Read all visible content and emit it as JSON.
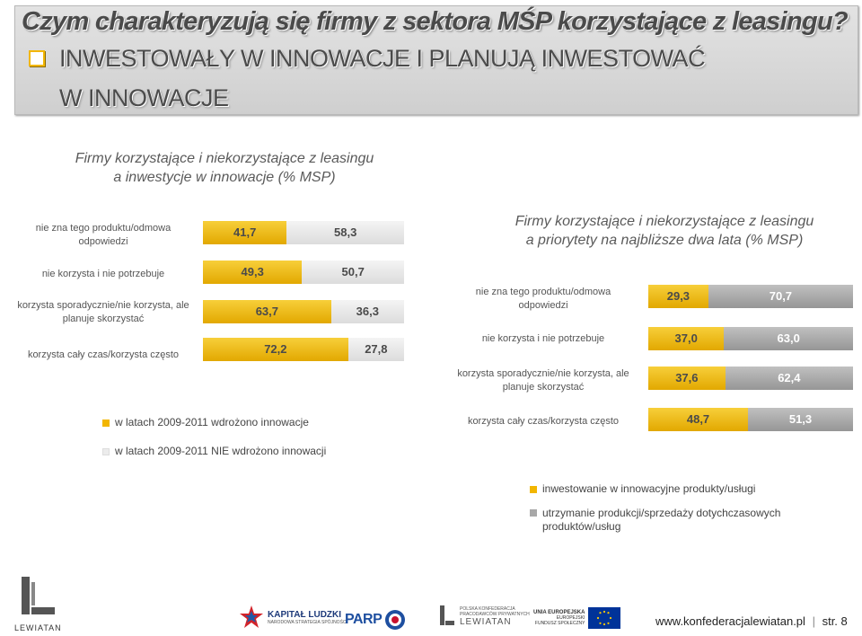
{
  "header": {
    "title": "Czym charakteryzują się firmy z sektora MŚP korzystające z leasingu?",
    "subtitle_line1": "INWESTOWAŁY W INNOWACJE  I PLANUJĄ INWESTOWAĆ",
    "subtitle_line2": "W INNOWACJE",
    "bullet_icon": "square-bullet-icon"
  },
  "colors": {
    "gold": "#f2b600",
    "light_gray": "#ececec",
    "dark_gray": "#a8a8a8",
    "text": "#4a4a4a"
  },
  "chart_data": [
    {
      "type": "bar",
      "orientation": "horizontal-stacked-100",
      "title": "Firmy korzystające i niekorzystające z leasingu a inwestycje w innowacje (% MSP)",
      "title_lines": [
        "Firmy korzystające i niekorzystające z leasingu",
        "a inwestycje w innowacje (% MSP)"
      ],
      "categories": [
        "nie zna tego produktu/odmowa odpowiedzi",
        "nie korzysta i nie potrzebuje",
        "korzysta sporadycznie/nie korzysta, ale planuje skorzystać",
        "korzysta cały czas/korzysta często"
      ],
      "series": [
        {
          "name": "w latach 2009-2011 wdrożono innowacje",
          "values": [
            41.7,
            49.3,
            63.7,
            72.2
          ],
          "labels": [
            "41,7",
            "49,3",
            "63,7",
            "72,2"
          ]
        },
        {
          "name": "w latach 2009-2011 NIE wdrożono innowacji",
          "values": [
            58.3,
            50.7,
            36.3,
            27.8
          ],
          "labels": [
            "58,3",
            "50,7",
            "36,3",
            "27,8"
          ]
        }
      ],
      "legend": "bottom"
    },
    {
      "type": "bar",
      "orientation": "horizontal-stacked-100",
      "title": "Firmy korzystające i niekorzystające z leasingu a priorytety na najbliższe dwa lata (% MSP)",
      "title_lines": [
        "Firmy korzystające i niekorzystające z leasingu",
        "a priorytety na najbliższe dwa lata (% MSP)"
      ],
      "categories": [
        "nie zna tego produktu/odmowa odpowiedzi",
        "nie korzysta i nie potrzebuje",
        "korzysta sporadycznie/nie korzysta, ale planuje skorzystać",
        "korzysta cały czas/korzysta często"
      ],
      "series": [
        {
          "name": "inwestowanie w innowacyjne produkty/usługi",
          "values": [
            29.3,
            37.0,
            37.6,
            48.7
          ],
          "labels": [
            "29,3",
            "37,0",
            "37,6",
            "48,7"
          ]
        },
        {
          "name": "utrzymanie produkcji/sprzedaży dotychczasowych produktów/usług",
          "values": [
            70.7,
            63.0,
            62.4,
            51.3
          ],
          "labels": [
            "70,7",
            "63,0",
            "62,4",
            "51,3"
          ]
        }
      ],
      "legend": "bottom"
    }
  ],
  "left_chart": {
    "rows": [
      {
        "label_lines": [
          "nie zna tego produktu/odmowa",
          "odpowiedzi"
        ]
      },
      {
        "label_lines": [
          "nie korzysta i nie potrzebuje"
        ]
      },
      {
        "label_lines": [
          "korzysta sporadycznie/nie korzysta, ale",
          "planuje skorzystać"
        ]
      },
      {
        "label_lines": [
          "korzysta cały czas/korzysta często"
        ]
      }
    ]
  },
  "right_chart": {
    "rows": [
      {
        "label_lines": [
          "nie zna tego produktu/odmowa",
          "odpowiedzi"
        ]
      },
      {
        "label_lines": [
          "nie korzysta i nie potrzebuje"
        ]
      },
      {
        "label_lines": [
          "korzysta sporadycznie/nie korzysta, ale",
          "planuje skorzystać"
        ]
      },
      {
        "label_lines": [
          "korzysta cały czas/korzysta często"
        ]
      }
    ],
    "legend_line2b": "produktów/usług"
  },
  "footer": {
    "url": "www.konfederacjalewiatan.pl",
    "page": "str. 8",
    "lewiatan_logo_text": "LEWIATAN",
    "logos": [
      {
        "name": "kapital-ludzki-logo",
        "line1": "KAPITAŁ LUDZKI",
        "line2": "NARODOWA STRATEGIA SPÓJNOŚCI"
      },
      {
        "name": "parp-logo",
        "line1": "PARP"
      },
      {
        "name": "lewiatan-konfederacja-logo",
        "line1": "POLSKA KONFEDERACJA",
        "line2": "PRACODAWCÓW PRYWATNYCH",
        "line3": "LEWIATAN"
      },
      {
        "name": "unia-europejska-logo",
        "line1": "UNIA EUROPEJSKA",
        "line2": "EUROPEJSKI",
        "line3": "FUNDUSZ SPOŁECZNY"
      }
    ]
  }
}
